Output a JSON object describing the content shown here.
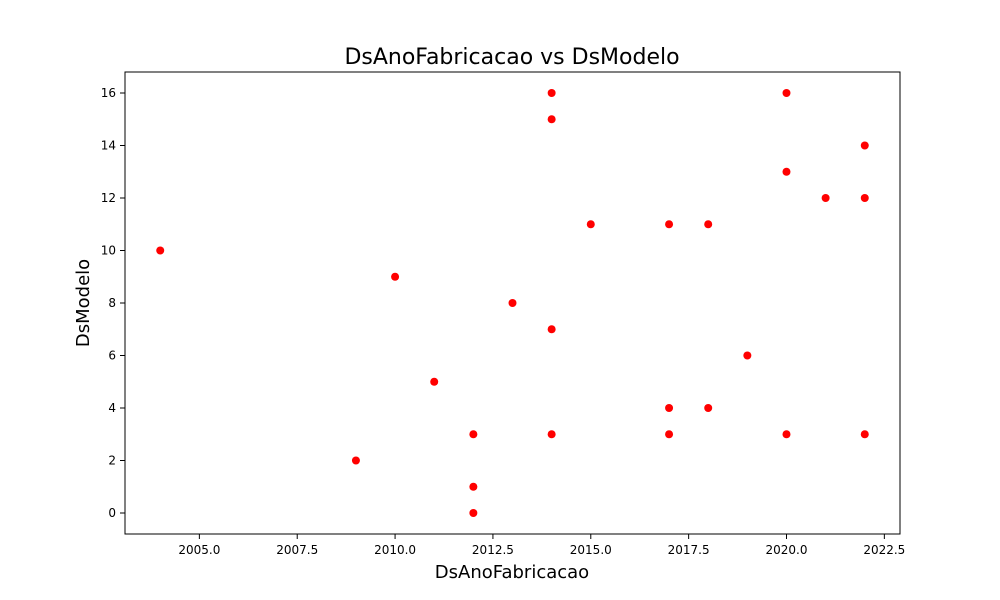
{
  "chart_data": {
    "type": "scatter",
    "title": "DsAnoFabricacao vs DsModelo",
    "xlabel": "DsAnoFabricacao",
    "ylabel": "DsModelo",
    "xlim": [
      2003.1,
      2022.9
    ],
    "ylim": [
      -0.8,
      16.8
    ],
    "xticks": [
      2005.0,
      2007.5,
      2010.0,
      2012.5,
      2015.0,
      2017.5,
      2020.0,
      2022.5
    ],
    "xtick_labels": [
      "2005.0",
      "2007.5",
      "2010.0",
      "2012.5",
      "2015.0",
      "2017.5",
      "2020.0",
      "2022.5"
    ],
    "yticks": [
      0,
      2,
      4,
      6,
      8,
      10,
      12,
      14,
      16
    ],
    "ytick_labels": [
      "0",
      "2",
      "4",
      "6",
      "8",
      "10",
      "12",
      "14",
      "16"
    ],
    "grid": false,
    "marker_color": "#ff0000",
    "points": [
      {
        "x": 2004,
        "y": 10
      },
      {
        "x": 2009,
        "y": 2
      },
      {
        "x": 2010,
        "y": 9
      },
      {
        "x": 2011,
        "y": 5
      },
      {
        "x": 2012,
        "y": 3
      },
      {
        "x": 2012,
        "y": 1
      },
      {
        "x": 2012,
        "y": 0
      },
      {
        "x": 2013,
        "y": 8
      },
      {
        "x": 2014,
        "y": 16
      },
      {
        "x": 2014,
        "y": 15
      },
      {
        "x": 2014,
        "y": 7
      },
      {
        "x": 2014,
        "y": 3
      },
      {
        "x": 2015,
        "y": 11
      },
      {
        "x": 2017,
        "y": 11
      },
      {
        "x": 2017,
        "y": 4
      },
      {
        "x": 2017,
        "y": 3
      },
      {
        "x": 2018,
        "y": 11
      },
      {
        "x": 2018,
        "y": 4
      },
      {
        "x": 2019,
        "y": 6
      },
      {
        "x": 2020,
        "y": 16
      },
      {
        "x": 2020,
        "y": 13
      },
      {
        "x": 2020,
        "y": 3
      },
      {
        "x": 2021,
        "y": 12
      },
      {
        "x": 2022,
        "y": 14
      },
      {
        "x": 2022,
        "y": 12
      },
      {
        "x": 2022,
        "y": 3
      }
    ]
  }
}
